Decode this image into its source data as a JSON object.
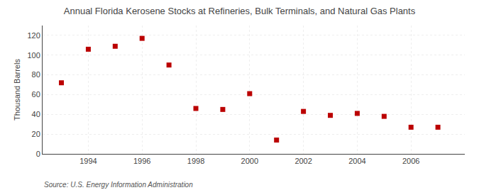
{
  "chart_data": {
    "type": "scatter",
    "title": "Annual Florida Kerosene Stocks at Refineries, Bulk Terminals, and Natural Gas Plants",
    "ylabel": "Thousand Barrels",
    "annotation": "Source: U.S. Energy Information Administration",
    "x": [
      1993,
      1994,
      1995,
      1996,
      1997,
      1998,
      1999,
      2000,
      2001,
      2002,
      2003,
      2004,
      2005,
      2006,
      2007
    ],
    "values": [
      72,
      106,
      109,
      117,
      90,
      46,
      45,
      61,
      14,
      43,
      39,
      41,
      38,
      27,
      27
    ],
    "color": "#bb0000",
    "marker": "square",
    "xlim": [
      1992.3,
      2008.0
    ],
    "xticks": [
      1994,
      1996,
      1998,
      2000,
      2002,
      2004,
      2006
    ],
    "ylim": [
      0,
      130
    ],
    "yticks": [
      0,
      20,
      40,
      60,
      80,
      100,
      120
    ],
    "grid": true
  }
}
